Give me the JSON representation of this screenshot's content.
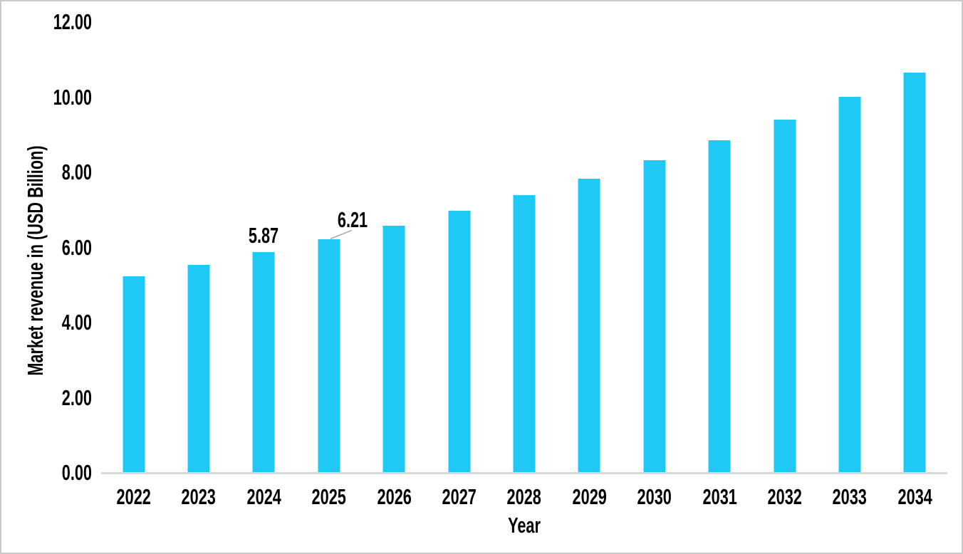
{
  "chart_data": {
    "type": "bar",
    "categories": [
      "2022",
      "2023",
      "2024",
      "2025",
      "2026",
      "2027",
      "2028",
      "2029",
      "2030",
      "2031",
      "2032",
      "2033",
      "2034"
    ],
    "values": [
      5.24,
      5.54,
      5.87,
      6.21,
      6.58,
      6.98,
      7.39,
      7.83,
      8.32,
      8.86,
      9.4,
      10.01,
      10.65
    ],
    "xlabel": "Year",
    "ylabel": "Market revenue in (USD Billion)",
    "ylim": [
      0,
      12
    ],
    "yticks": [
      {
        "value": 12,
        "label": "12.00"
      },
      {
        "value": 10,
        "label": "10.00"
      },
      {
        "value": 8,
        "label": "8.00"
      },
      {
        "value": 6,
        "label": "6.00"
      },
      {
        "value": 4,
        "label": "4.00"
      },
      {
        "value": 2,
        "label": "2.00"
      },
      {
        "value": 0,
        "label": "0.00"
      }
    ],
    "grid": false,
    "legend_position": "none",
    "bar_color": "#1fc9f5",
    "axis_line_color": "#d9d9d9",
    "leader_line_color": "#a6a6a6",
    "text_color": "#000000",
    "data_labels": [
      {
        "index": 2,
        "text": "5.87",
        "placement": "above",
        "leader_line": false
      },
      {
        "index": 3,
        "text": "6.21",
        "placement": "offset-right",
        "leader_line": true
      }
    ]
  }
}
